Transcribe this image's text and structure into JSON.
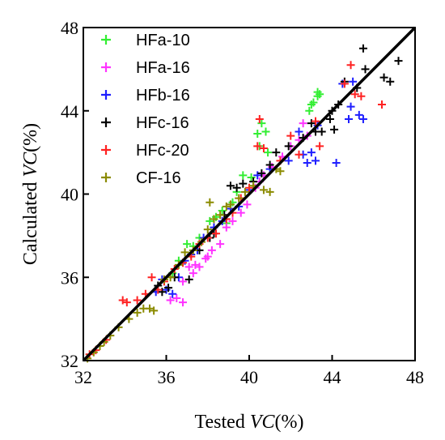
{
  "chart_data": {
    "type": "scatter",
    "xlabel": {
      "prefix": "Tested ",
      "var": "VC",
      "suffix": "(%)"
    },
    "ylabel": {
      "prefix": "Calculated ",
      "var": "VC",
      "suffix": "(%)"
    },
    "xlim": [
      32,
      48
    ],
    "ylim": [
      32,
      48
    ],
    "xticks": [
      32,
      36,
      40,
      44,
      48
    ],
    "yticks": [
      32,
      36,
      40,
      44,
      48
    ],
    "grid": false,
    "legend_position": "top-left",
    "reference_line": {
      "from": [
        32,
        32
      ],
      "to": [
        48,
        48
      ],
      "color": "#000000"
    },
    "series": [
      {
        "name": "HFa-10",
        "color": "#33ee33",
        "points": [
          [
            36.3,
            36.2
          ],
          [
            36.6,
            36.8
          ],
          [
            37.0,
            37.6
          ],
          [
            37.3,
            37.5
          ],
          [
            37.6,
            37.9
          ],
          [
            38.1,
            38.7
          ],
          [
            38.4,
            38.9
          ],
          [
            38.7,
            39.2
          ],
          [
            39.2,
            39.6
          ],
          [
            39.4,
            40.1
          ],
          [
            39.7,
            40.9
          ],
          [
            40.1,
            40.8
          ],
          [
            40.4,
            42.9
          ],
          [
            40.5,
            42.3
          ],
          [
            40.6,
            43.4
          ],
          [
            40.8,
            43.0
          ],
          [
            40.9,
            42.0
          ],
          [
            42.9,
            44.0
          ],
          [
            43.0,
            44.3
          ],
          [
            43.1,
            44.4
          ],
          [
            43.3,
            44.7
          ],
          [
            43.3,
            44.9
          ],
          [
            43.4,
            44.8
          ],
          [
            38.9,
            38.6
          ]
        ]
      },
      {
        "name": "HFa-16",
        "color": "#ff33ff",
        "points": [
          [
            36.2,
            34.9
          ],
          [
            36.5,
            35.0
          ],
          [
            36.8,
            34.8
          ],
          [
            37.1,
            36.5
          ],
          [
            37.4,
            36.6
          ],
          [
            37.6,
            36.5
          ],
          [
            37.9,
            36.9
          ],
          [
            38.2,
            37.3
          ],
          [
            38.6,
            37.6
          ],
          [
            38.9,
            38.4
          ],
          [
            39.2,
            38.7
          ],
          [
            39.6,
            39.1
          ],
          [
            39.9,
            39.5
          ],
          [
            40.3,
            40.3
          ],
          [
            40.7,
            40.9
          ],
          [
            41.1,
            41.3
          ],
          [
            41.6,
            41.8
          ],
          [
            42.0,
            42.3
          ],
          [
            42.4,
            42.6
          ],
          [
            42.6,
            43.4
          ],
          [
            42.8,
            42.8
          ],
          [
            37.3,
            36.2
          ],
          [
            38.0,
            37.0
          ],
          [
            40.5,
            40.6
          ],
          [
            36.8,
            35.8
          ]
        ]
      },
      {
        "name": "HFb-16",
        "color": "#1f1fff",
        "points": [
          [
            35.5,
            35.3
          ],
          [
            35.8,
            35.9
          ],
          [
            36.0,
            35.4
          ],
          [
            36.3,
            35.2
          ],
          [
            36.6,
            36.0
          ],
          [
            36.9,
            36.8
          ],
          [
            37.2,
            37.1
          ],
          [
            37.5,
            37.3
          ],
          [
            37.8,
            37.9
          ],
          [
            38.3,
            38.4
          ],
          [
            38.7,
            38.7
          ],
          [
            39.1,
            39.3
          ],
          [
            39.5,
            39.4
          ],
          [
            40.0,
            40.2
          ],
          [
            40.4,
            40.9
          ],
          [
            41.0,
            41.2
          ],
          [
            41.9,
            41.6
          ],
          [
            42.6,
            41.9
          ],
          [
            42.8,
            41.5
          ],
          [
            43.0,
            42.0
          ],
          [
            43.2,
            41.6
          ],
          [
            43.3,
            43.3
          ],
          [
            44.2,
            41.5
          ],
          [
            44.8,
            43.6
          ],
          [
            44.9,
            44.2
          ],
          [
            45.3,
            43.8
          ],
          [
            45.5,
            43.6
          ],
          [
            44.5,
            45.3
          ],
          [
            45.0,
            45.4
          ],
          [
            42.4,
            43.0
          ]
        ]
      },
      {
        "name": "HFc-16",
        "color": "#000000",
        "points": [
          [
            35.6,
            35.6
          ],
          [
            35.8,
            35.3
          ],
          [
            36.1,
            35.5
          ],
          [
            36.4,
            36.0
          ],
          [
            37.1,
            35.9
          ],
          [
            37.6,
            37.3
          ],
          [
            38.1,
            37.9
          ],
          [
            38.3,
            38.1
          ],
          [
            38.8,
            39.0
          ],
          [
            39.1,
            40.4
          ],
          [
            39.4,
            40.3
          ],
          [
            39.7,
            40.5
          ],
          [
            40.2,
            40.6
          ],
          [
            40.6,
            41.0
          ],
          [
            41.0,
            41.4
          ],
          [
            41.3,
            42.0
          ],
          [
            41.9,
            42.3
          ],
          [
            42.6,
            42.7
          ],
          [
            43.0,
            43.4
          ],
          [
            43.2,
            43.0
          ],
          [
            43.5,
            43.0
          ],
          [
            43.9,
            43.6
          ],
          [
            44.1,
            43.1
          ],
          [
            44.3,
            44.3
          ],
          [
            44.6,
            45.4
          ],
          [
            45.2,
            45.1
          ],
          [
            45.5,
            47.0
          ],
          [
            45.6,
            46.0
          ],
          [
            46.5,
            45.6
          ],
          [
            46.8,
            45.4
          ],
          [
            47.2,
            46.4
          ],
          [
            44.0,
            44.0
          ]
        ]
      },
      {
        "name": "HFc-20",
        "color": "#ff2222",
        "points": [
          [
            33.1,
            33.0
          ],
          [
            33.9,
            34.9
          ],
          [
            34.1,
            34.8
          ],
          [
            34.6,
            34.9
          ],
          [
            35.0,
            35.2
          ],
          [
            35.3,
            36.0
          ],
          [
            35.6,
            35.4
          ],
          [
            35.9,
            35.8
          ],
          [
            36.4,
            36.4
          ],
          [
            36.8,
            36.7
          ],
          [
            37.2,
            37.0
          ],
          [
            37.6,
            37.6
          ],
          [
            38.0,
            37.9
          ],
          [
            38.4,
            38.1
          ],
          [
            38.9,
            38.8
          ],
          [
            39.2,
            39.1
          ],
          [
            39.6,
            39.8
          ],
          [
            40.0,
            40.3
          ],
          [
            40.4,
            42.3
          ],
          [
            40.5,
            43.6
          ],
          [
            40.7,
            42.2
          ],
          [
            41.5,
            41.6
          ],
          [
            42.0,
            42.8
          ],
          [
            42.4,
            41.9
          ],
          [
            43.2,
            43.5
          ],
          [
            43.4,
            42.3
          ],
          [
            44.6,
            45.3
          ],
          [
            44.9,
            46.2
          ],
          [
            45.1,
            44.8
          ],
          [
            45.4,
            44.7
          ],
          [
            46.4,
            44.3
          ],
          [
            32.3,
            32.3
          ],
          [
            32.6,
            32.5
          ]
        ]
      },
      {
        "name": "CF-16",
        "color": "#8b8b00",
        "points": [
          [
            32.2,
            32.1
          ],
          [
            32.5,
            32.4
          ],
          [
            32.8,
            32.7
          ],
          [
            33.0,
            32.9
          ],
          [
            33.3,
            33.2
          ],
          [
            33.7,
            33.6
          ],
          [
            34.2,
            34.0
          ],
          [
            34.6,
            34.3
          ],
          [
            34.9,
            34.5
          ],
          [
            35.2,
            34.5
          ],
          [
            35.4,
            34.4
          ],
          [
            35.9,
            35.9
          ],
          [
            36.2,
            36.0
          ],
          [
            36.6,
            36.6
          ],
          [
            36.9,
            37.2
          ],
          [
            37.3,
            37.3
          ],
          [
            37.7,
            37.7
          ],
          [
            38.0,
            38.3
          ],
          [
            38.3,
            38.8
          ],
          [
            38.6,
            39.0
          ],
          [
            38.9,
            39.4
          ],
          [
            39.1,
            39.5
          ],
          [
            39.5,
            39.8
          ],
          [
            39.8,
            40.1
          ],
          [
            40.2,
            40.4
          ],
          [
            40.7,
            40.2
          ],
          [
            41.0,
            40.1
          ],
          [
            41.3,
            41.2
          ],
          [
            41.5,
            41.1
          ],
          [
            38.1,
            39.6
          ]
        ]
      }
    ]
  }
}
